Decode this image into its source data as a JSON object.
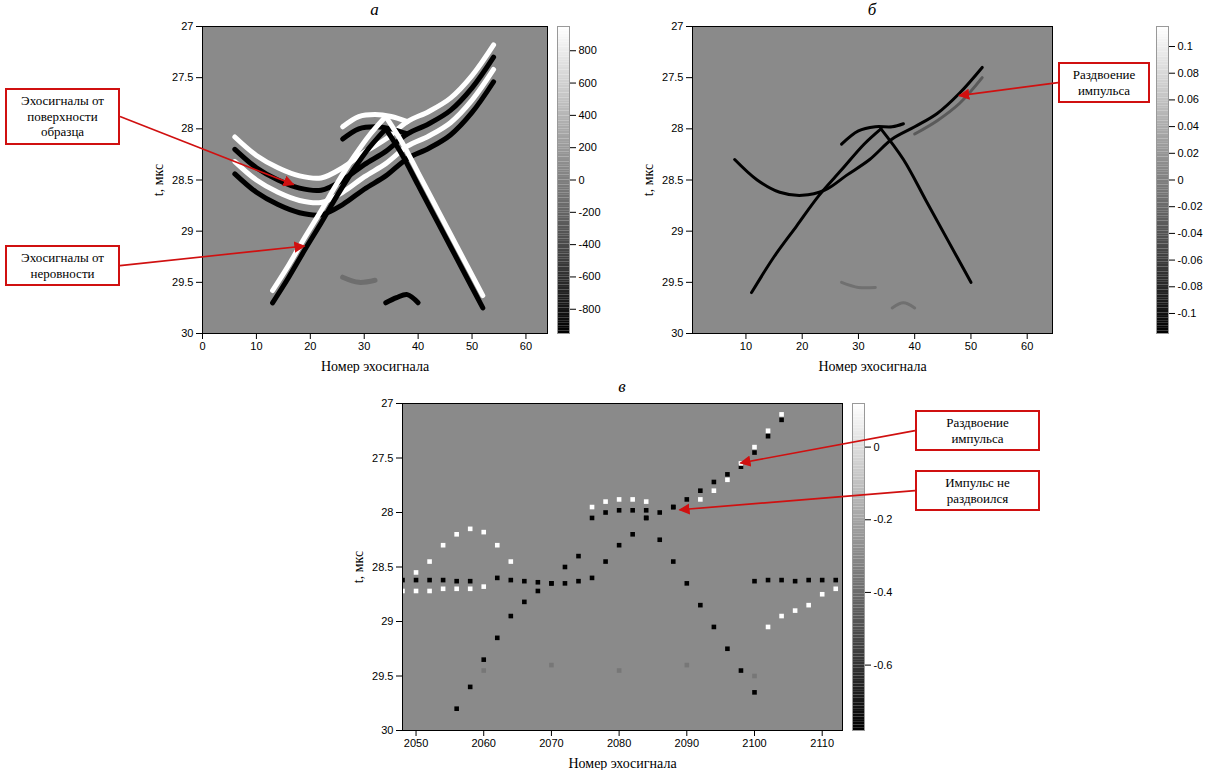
{
  "chart_data": [
    {
      "type": "line",
      "title": "а",
      "x_label": "Номер эхосигнала",
      "y_label": "t, мкс",
      "xlim": [
        0,
        64
      ],
      "xticks": [
        0,
        10,
        20,
        30,
        40,
        50,
        60
      ],
      "ylim": [
        30,
        27
      ],
      "yticks": [
        27,
        27.5,
        28,
        28.5,
        29,
        29.5,
        30
      ],
      "series": [
        {
          "color": "white",
          "x": [
            6,
            10,
            14,
            18,
            22,
            26,
            30,
            34,
            38,
            42,
            46,
            50,
            54
          ],
          "t": [
            28.08,
            28.26,
            28.38,
            28.46,
            28.48,
            28.38,
            28.23,
            28.1,
            27.93,
            27.83,
            27.7,
            27.48,
            27.18
          ]
        },
        {
          "color": "white",
          "x": [
            6,
            10,
            14,
            18,
            22,
            26,
            30,
            34,
            38,
            42,
            46,
            50,
            54
          ],
          "t": [
            28.32,
            28.5,
            28.62,
            28.7,
            28.72,
            28.62,
            28.47,
            28.34,
            28.17,
            28.07,
            27.94,
            27.72,
            27.42
          ]
        },
        {
          "color": "black",
          "x": [
            6,
            10,
            14,
            18,
            22,
            26,
            30,
            34,
            38,
            42,
            46,
            50,
            54
          ],
          "t": [
            28.2,
            28.38,
            28.5,
            28.58,
            28.6,
            28.5,
            28.35,
            28.22,
            28.05,
            27.95,
            27.82,
            27.6,
            27.3
          ]
        },
        {
          "color": "black",
          "x": [
            6,
            10,
            14,
            18,
            22,
            26,
            30,
            34,
            38,
            42,
            46,
            50,
            54
          ],
          "t": [
            28.44,
            28.62,
            28.74,
            28.82,
            28.84,
            28.74,
            28.59,
            28.46,
            28.29,
            28.19,
            28.06,
            27.84,
            27.54
          ]
        },
        {
          "color": "white",
          "x": [
            26,
            29,
            32,
            35,
            38
          ],
          "t": [
            27.98,
            27.88,
            27.86,
            27.88,
            27.93
          ]
        },
        {
          "color": "black",
          "x": [
            26,
            29,
            32,
            35,
            38
          ],
          "t": [
            28.1,
            28.0,
            27.98,
            28.0,
            28.05
          ]
        },
        {
          "color": "white",
          "x": [
            13,
            16,
            19,
            22,
            25,
            28,
            31,
            34
          ],
          "t": [
            29.58,
            29.33,
            29.06,
            28.8,
            28.53,
            28.28,
            28.06,
            27.88
          ]
        },
        {
          "color": "black",
          "x": [
            13,
            16,
            19,
            22,
            25,
            28,
            31,
            34
          ],
          "t": [
            29.7,
            29.45,
            29.18,
            28.92,
            28.65,
            28.4,
            28.18,
            28.0
          ]
        },
        {
          "color": "white",
          "x": [
            34,
            37,
            40,
            43,
            46,
            49,
            52
          ],
          "t": [
            27.88,
            28.13,
            28.43,
            28.73,
            29.03,
            29.33,
            29.63
          ]
        },
        {
          "color": "black",
          "x": [
            34,
            37,
            40,
            43,
            46,
            49,
            52
          ],
          "t": [
            28.0,
            28.25,
            28.55,
            28.85,
            29.15,
            29.45,
            29.75
          ]
        },
        {
          "color": "#6e6e6e",
          "x": [
            26,
            29,
            32
          ],
          "t": [
            29.45,
            29.5,
            29.48
          ]
        },
        {
          "color": "black",
          "x": [
            34,
            36,
            38,
            40
          ],
          "t": [
            29.7,
            29.65,
            29.62,
            29.7
          ]
        }
      ],
      "colorbar": {
        "range": [
          -950,
          950
        ],
        "ticks": [
          -800,
          -600,
          -400,
          -200,
          0,
          200,
          400,
          600,
          800
        ]
      },
      "annotations": [
        {
          "text": "Эхосигналы от поверхности образца",
          "x": 17,
          "t": 28.55
        },
        {
          "text": "Эхосигналы от неровности",
          "x": 19,
          "t": 29.15
        }
      ]
    },
    {
      "type": "line",
      "title": "б",
      "x_label": "Номер эхосигнала",
      "y_label": "t, мкс",
      "xlim": [
        0.5,
        64.5
      ],
      "xticks": [
        10,
        20,
        30,
        40,
        50,
        60
      ],
      "ylim": [
        30,
        27
      ],
      "yticks": [
        27,
        27.5,
        28,
        28.5,
        29,
        29.5,
        30
      ],
      "series": [
        {
          "color": "#5a5a5a",
          "x": [
            40,
            44,
            48,
            52
          ],
          "t": [
            28.05,
            27.92,
            27.75,
            27.5
          ]
        },
        {
          "color": "black",
          "x": [
            8,
            12,
            16,
            20,
            24,
            28,
            32,
            36,
            40,
            44,
            48,
            52
          ],
          "t": [
            28.3,
            28.5,
            28.62,
            28.65,
            28.6,
            28.45,
            28.3,
            28.1,
            27.98,
            27.85,
            27.65,
            27.4
          ]
        },
        {
          "color": "black",
          "x": [
            27,
            30,
            33,
            36,
            38
          ],
          "t": [
            28.15,
            28.02,
            27.98,
            27.98,
            27.95
          ]
        },
        {
          "color": "black",
          "x": [
            11,
            15,
            19,
            23,
            27,
            31,
            34
          ],
          "t": [
            29.6,
            29.25,
            28.95,
            28.65,
            28.4,
            28.15,
            28.0
          ]
        },
        {
          "color": "black",
          "x": [
            34,
            38,
            42,
            46,
            50
          ],
          "t": [
            28.0,
            28.3,
            28.7,
            29.1,
            29.5
          ]
        },
        {
          "color": "#707070",
          "x": [
            27,
            30,
            33
          ],
          "t": [
            29.5,
            29.55,
            29.55
          ]
        },
        {
          "color": "#707070",
          "x": [
            36,
            38,
            40
          ],
          "t": [
            29.75,
            29.7,
            29.75
          ]
        }
      ],
      "colorbar": {
        "range": [
          -0.115,
          0.115
        ],
        "ticks": [
          -0.1,
          -0.08,
          -0.06,
          -0.04,
          -0.02,
          0,
          0.02,
          0.04,
          0.06,
          0.08,
          0.1
        ]
      },
      "annotations": [
        {
          "text": "Раздвоение импульса",
          "x": 48,
          "t": 27.68
        }
      ]
    },
    {
      "type": "scatter",
      "title": "в",
      "x_label": "Номер эхосигнала",
      "y_label": "t, мкс",
      "marker": "square",
      "xlim": [
        2048,
        2113
      ],
      "xticks": [
        2050,
        2060,
        2070,
        2080,
        2090,
        2100,
        2110
      ],
      "ylim": [
        30,
        27
      ],
      "yticks": [
        27,
        27.5,
        28,
        28.5,
        29,
        29.5,
        30
      ],
      "series": [
        {
          "color": "black",
          "x": [
            2048,
            2050,
            2052,
            2054,
            2056,
            2058
          ],
          "t": [
            28.62,
            28.62,
            28.62,
            28.62,
            28.63,
            28.63
          ]
        },
        {
          "color": "white",
          "x": [
            2048,
            2050,
            2052,
            2054,
            2056,
            2058,
            2060
          ],
          "t": [
            28.72,
            28.72,
            28.72,
            28.7,
            28.7,
            28.7,
            28.68
          ]
        },
        {
          "color": "white",
          "x": [
            2050,
            2052,
            2054,
            2056,
            2058,
            2060,
            2062,
            2064
          ],
          "t": [
            28.55,
            28.45,
            28.3,
            28.2,
            28.15,
            28.18,
            28.3,
            28.45
          ]
        },
        {
          "color": "black",
          "x": [
            2062,
            2064,
            2066,
            2068,
            2070,
            2072,
            2074,
            2076,
            2078,
            2080,
            2082,
            2084,
            2086,
            2088
          ],
          "t": [
            28.6,
            28.62,
            28.63,
            28.64,
            28.65,
            28.65,
            28.63,
            28.6,
            28.45,
            28.3,
            28.2,
            28.05,
            28.0,
            27.95
          ]
        },
        {
          "color": "white",
          "x": [
            2076,
            2078,
            2080,
            2082,
            2084
          ],
          "t": [
            27.95,
            27.9,
            27.88,
            27.88,
            27.9
          ]
        },
        {
          "color": "black",
          "x": [
            2076,
            2078,
            2080,
            2082,
            2084
          ],
          "t": [
            28.05,
            28.0,
            27.98,
            27.98,
            27.98
          ]
        },
        {
          "color": "black",
          "x": [
            2056,
            2058,
            2060,
            2062,
            2064,
            2066,
            2068,
            2070,
            2072,
            2074
          ],
          "t": [
            29.8,
            29.6,
            29.35,
            29.15,
            28.95,
            28.82,
            28.72,
            28.65,
            28.5,
            28.4
          ]
        },
        {
          "color": "black",
          "x": [
            2084,
            2086,
            2088,
            2090,
            2092,
            2094,
            2096,
            2098,
            2100
          ],
          "t": [
            28.05,
            28.25,
            28.45,
            28.65,
            28.85,
            29.05,
            29.25,
            29.45,
            29.65
          ]
        },
        {
          "color": "black",
          "x": [
            2088,
            2090,
            2092,
            2094,
            2096,
            2098,
            2100,
            2102,
            2104
          ],
          "t": [
            27.95,
            27.88,
            27.8,
            27.72,
            27.65,
            27.58,
            27.45,
            27.3,
            27.15
          ]
        },
        {
          "color": "white",
          "x": [
            2092,
            2094,
            2096,
            2098,
            2100,
            2102,
            2104
          ],
          "t": [
            27.88,
            27.8,
            27.7,
            27.55,
            27.4,
            27.25,
            27.1
          ]
        },
        {
          "color": "black",
          "x": [
            2100,
            2102,
            2104,
            2106,
            2108,
            2110,
            2112
          ],
          "t": [
            28.63,
            28.62,
            28.62,
            28.63,
            28.62,
            28.62,
            28.62
          ]
        },
        {
          "color": "white",
          "x": [
            2102,
            2104,
            2106,
            2108,
            2110,
            2112
          ],
          "t": [
            29.05,
            28.95,
            28.9,
            28.85,
            28.75,
            28.7
          ]
        },
        {
          "color": "#777777",
          "x": [
            2060,
            2070,
            2080,
            2090,
            2100
          ],
          "t": [
            29.45,
            29.4,
            29.45,
            29.4,
            29.5
          ]
        }
      ],
      "colorbar": {
        "range": [
          -0.78,
          0.12
        ],
        "ticks": [
          -0.6,
          -0.4,
          -0.2,
          0
        ]
      },
      "annotations": [
        {
          "text": "Раздвоение импульса",
          "x": 2098,
          "t": 27.55
        },
        {
          "text": "Импульс не раздвоился",
          "x": 2089,
          "t": 27.98
        }
      ]
    }
  ]
}
